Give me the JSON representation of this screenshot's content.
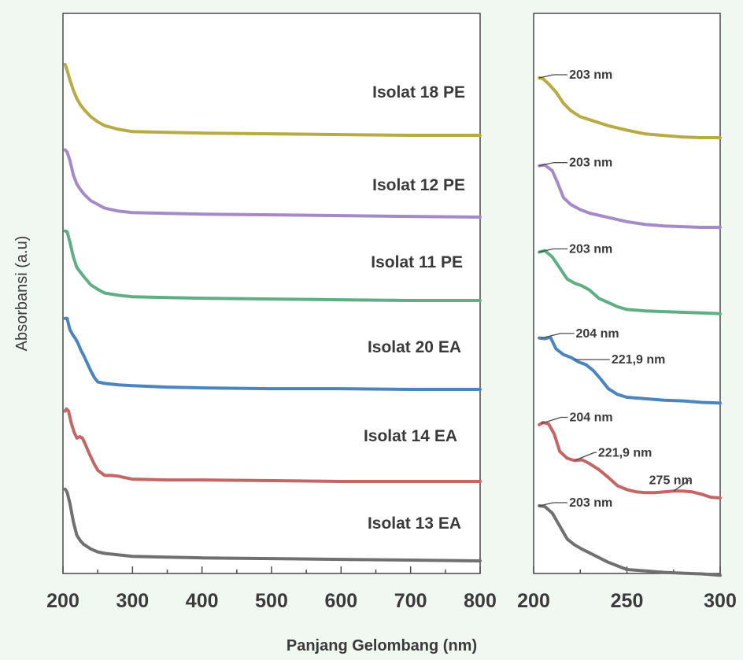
{
  "chart_data": [
    {
      "type": "line",
      "panel": "full-range",
      "xlabel": "Panjang Gelombang (nm)",
      "ylabel": "Absorbansi (a.u)",
      "xlim": [
        200,
        800
      ],
      "x_ticks": [
        200,
        300,
        400,
        500,
        600,
        700,
        800
      ],
      "y_ticks_shown": false,
      "grid": false,
      "legend": "none; each spectrum labelled inline above its trace",
      "series": [
        {
          "name": "Isolat 18 PE",
          "color": "#b6ab45",
          "x": [
            203,
            206,
            210,
            215,
            220,
            225,
            230,
            240,
            250,
            260,
            280,
            300,
            350,
            400,
            500,
            600,
            700,
            800
          ],
          "y": [
            0.95,
            0.87,
            0.74,
            0.6,
            0.49,
            0.41,
            0.35,
            0.25,
            0.18,
            0.13,
            0.08,
            0.05,
            0.04,
            0.03,
            0.02,
            0.01,
            0.0,
            0.0
          ]
        },
        {
          "name": "Isolat 12 PE",
          "color": "#a48bc7",
          "x": [
            203,
            206,
            210,
            215,
            220,
            225,
            230,
            240,
            250,
            260,
            280,
            300,
            350,
            400,
            500,
            600,
            700,
            800
          ],
          "y": [
            0.9,
            0.87,
            0.76,
            0.56,
            0.44,
            0.37,
            0.31,
            0.22,
            0.17,
            0.12,
            0.08,
            0.06,
            0.05,
            0.04,
            0.03,
            0.02,
            0.01,
            0.0
          ]
        },
        {
          "name": "Isolat 11 PE",
          "color": "#5fae84",
          "x": [
            203,
            206,
            210,
            215,
            220,
            225,
            230,
            240,
            250,
            260,
            280,
            300,
            350,
            400,
            500,
            600,
            700,
            800
          ],
          "y": [
            0.93,
            0.92,
            0.78,
            0.58,
            0.44,
            0.38,
            0.32,
            0.21,
            0.15,
            0.1,
            0.07,
            0.05,
            0.04,
            0.03,
            0.02,
            0.01,
            0.0,
            0.0
          ]
        },
        {
          "name": "Isolat 20 EA",
          "color": "#4c85bd",
          "x": [
            203,
            206,
            210,
            214,
            218,
            222,
            226,
            230,
            240,
            245,
            250,
            260,
            280,
            300,
            350,
            400,
            500,
            600,
            700,
            800
          ],
          "y": [
            0.95,
            0.95,
            0.8,
            0.73,
            0.68,
            0.61,
            0.52,
            0.45,
            0.25,
            0.16,
            0.1,
            0.08,
            0.06,
            0.05,
            0.03,
            0.02,
            0.01,
            0.01,
            0.0,
            0.0
          ]
        },
        {
          "name": "Isolat 14 EA",
          "color": "#c36666",
          "x": [
            203,
            205,
            208,
            212,
            216,
            220,
            224,
            228,
            232,
            236,
            240,
            245,
            250,
            260,
            270,
            280,
            290,
            300,
            350,
            400,
            500,
            600,
            700,
            800
          ],
          "y": [
            0.94,
            0.97,
            0.94,
            0.78,
            0.66,
            0.58,
            0.6,
            0.58,
            0.5,
            0.41,
            0.33,
            0.23,
            0.15,
            0.08,
            0.08,
            0.07,
            0.05,
            0.03,
            0.02,
            0.02,
            0.01,
            0.0,
            0.0,
            0.0
          ]
        },
        {
          "name": "Isolat 13 EA",
          "color": "#707070",
          "x": [
            203,
            206,
            210,
            215,
            220,
            225,
            230,
            240,
            250,
            260,
            280,
            300,
            350,
            400,
            500,
            600,
            700,
            800
          ],
          "y": [
            0.96,
            0.92,
            0.77,
            0.52,
            0.34,
            0.27,
            0.22,
            0.16,
            0.12,
            0.1,
            0.08,
            0.06,
            0.05,
            0.04,
            0.03,
            0.02,
            0.01,
            0.0
          ]
        }
      ]
    },
    {
      "type": "line",
      "panel": "zoom",
      "xlim": [
        200,
        300
      ],
      "x_ticks": [
        200,
        250,
        300
      ],
      "y_ticks_shown": false,
      "grid": false,
      "series": [
        {
          "color": "#b6ab45",
          "x": [
            203,
            205,
            208,
            212,
            216,
            220,
            225,
            230,
            240,
            250,
            260,
            270,
            280,
            290,
            300
          ],
          "y": [
            1.0,
            0.99,
            0.92,
            0.81,
            0.66,
            0.56,
            0.48,
            0.44,
            0.36,
            0.3,
            0.25,
            0.23,
            0.21,
            0.2,
            0.2
          ],
          "peaks": [
            {
              "x": 203,
              "label": "203 nm"
            }
          ]
        },
        {
          "color": "#a48bc7",
          "x": [
            203,
            206,
            210,
            213,
            216,
            220,
            225,
            230,
            240,
            250,
            260,
            270,
            280,
            290,
            300
          ],
          "y": [
            0.97,
            0.98,
            0.9,
            0.72,
            0.52,
            0.42,
            0.35,
            0.3,
            0.24,
            0.18,
            0.14,
            0.12,
            0.11,
            0.1,
            0.1
          ],
          "peaks": [
            {
              "x": 203,
              "label": "203 nm"
            }
          ]
        },
        {
          "color": "#5fae84",
          "x": [
            203,
            206,
            210,
            214,
            218,
            222,
            226,
            230,
            235,
            240,
            245,
            250,
            260,
            270,
            280,
            290,
            300
          ],
          "y": [
            0.95,
            0.97,
            0.88,
            0.72,
            0.56,
            0.5,
            0.46,
            0.4,
            0.28,
            0.22,
            0.16,
            0.12,
            0.1,
            0.09,
            0.08,
            0.07,
            0.06
          ],
          "peaks": [
            {
              "x": 203,
              "label": "203 nm"
            }
          ]
        },
        {
          "color": "#4c85bd",
          "x": [
            203,
            206,
            209,
            212,
            216,
            220,
            224,
            228,
            232,
            236,
            240,
            245,
            250,
            260,
            270,
            280,
            290,
            300
          ],
          "y": [
            0.95,
            0.94,
            0.96,
            0.8,
            0.72,
            0.68,
            0.62,
            0.58,
            0.5,
            0.38,
            0.25,
            0.17,
            0.13,
            0.11,
            0.09,
            0.08,
            0.06,
            0.05
          ],
          "peaks": [
            {
              "x": 204,
              "label": "204 nm"
            },
            {
              "x": 221.9,
              "label": "221,9 nm"
            }
          ]
        },
        {
          "color": "#c36666",
          "x": [
            203,
            205,
            208,
            211,
            214,
            218,
            222,
            226,
            230,
            235,
            240,
            245,
            250,
            255,
            260,
            265,
            270,
            275,
            280,
            285,
            290,
            295,
            300
          ],
          "y": [
            0.97,
            1.0,
            0.98,
            0.85,
            0.62,
            0.53,
            0.5,
            0.51,
            0.46,
            0.38,
            0.28,
            0.17,
            0.12,
            0.09,
            0.08,
            0.08,
            0.09,
            0.1,
            0.1,
            0.09,
            0.06,
            0.02,
            0.01
          ],
          "peaks": [
            {
              "x": 204,
              "label": "204 nm"
            },
            {
              "x": 221.9,
              "label": "221,9 nm"
            },
            {
              "x": 275,
              "label": "275 nm"
            }
          ]
        },
        {
          "color": "#707070",
          "x": [
            203,
            206,
            210,
            214,
            218,
            222,
            226,
            230,
            240,
            250,
            260,
            270,
            280,
            290,
            300
          ],
          "y": [
            1.0,
            0.99,
            0.9,
            0.72,
            0.54,
            0.46,
            0.4,
            0.35,
            0.22,
            0.12,
            0.1,
            0.08,
            0.07,
            0.06,
            0.04
          ],
          "peaks": [
            {
              "x": 203,
              "label": "203 nm"
            }
          ]
        }
      ]
    }
  ]
}
